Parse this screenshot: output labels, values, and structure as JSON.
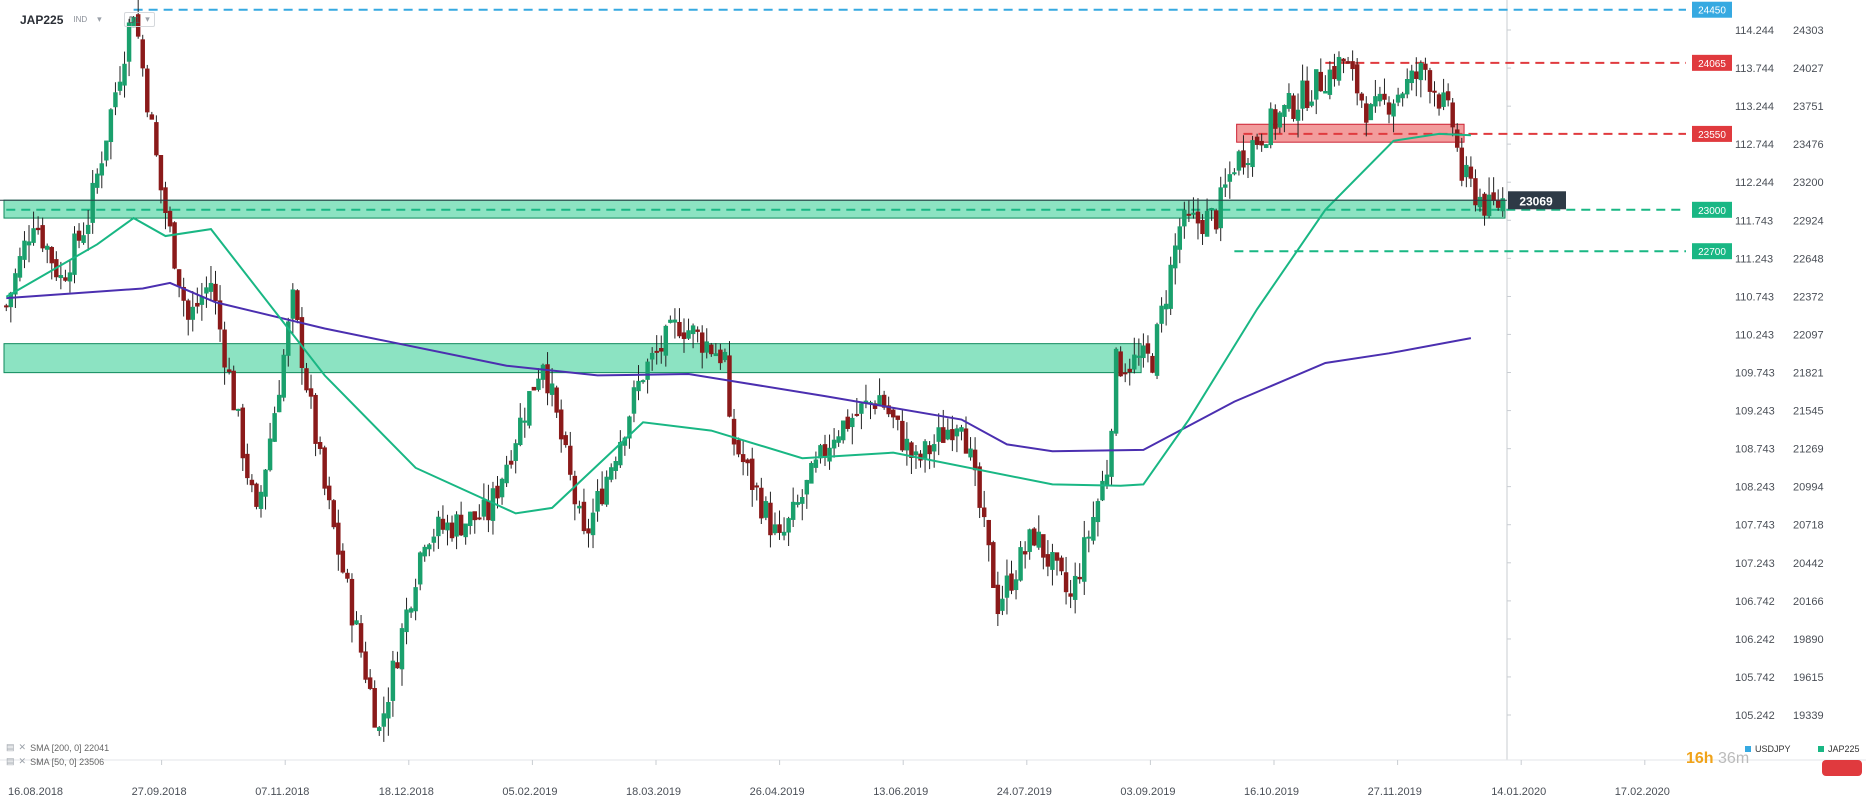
{
  "instrument": {
    "symbol": "JAP225",
    "type": "IND",
    "timeframe": "D1"
  },
  "indicators": [
    {
      "label": "SMA [200, 0] 22041",
      "color": "#4b2fb0"
    },
    {
      "label": "SMA [50, 0] 23506",
      "color": "#19b784"
    }
  ],
  "legend": [
    {
      "label": "USDJPY",
      "color": "#36a9e1"
    },
    {
      "label": "JAP225",
      "color": "#19b784"
    }
  ],
  "timer": {
    "hours": "16h",
    "minutes": "36m"
  },
  "colors": {
    "bull": "#1aa06d",
    "bear": "#8b1a1a",
    "zone_green": "#2ecc8f",
    "zone_red": "#e84a4a",
    "sma50": "#19b784",
    "sma200": "#4b2fb0",
    "usd_line": "#36a9e1",
    "res_line": "#e03a3e",
    "current_price": "#2e3a46"
  },
  "chart_data": {
    "type": "candlestick",
    "x_tick_labels": [
      "16.08.2018",
      "27.09.2018",
      "07.11.2018",
      "18.12.2018",
      "05.02.2019",
      "18.03.2019",
      "26.04.2019",
      "13.06.2019",
      "24.07.2019",
      "03.09.2019",
      "16.10.2019",
      "27.11.2019",
      "14.01.2020",
      "17.02.2020"
    ],
    "y_right_ticks": [
      "24303",
      "24027",
      "23751",
      "23476",
      "23200",
      "22924",
      "22648",
      "22372",
      "22097",
      "21821",
      "21545",
      "21269",
      "20994",
      "20718",
      "20442",
      "20166",
      "19890",
      "19615",
      "19339"
    ],
    "y_left_ticks": [
      "114.244",
      "113.744",
      "113.244",
      "112.744",
      "112.244",
      "111.743",
      "111.243",
      "110.743",
      "110.243",
      "109.743",
      "109.243",
      "108.743",
      "108.243",
      "107.743",
      "107.243",
      "106.742",
      "106.242",
      "105.742",
      "105.242"
    ],
    "y_range": [
      19180,
      24450
    ],
    "levels": [
      {
        "label": "24450",
        "value": 24450,
        "color": "#36a9e1",
        "x_start": 28
      },
      {
        "label": "24065",
        "value": 24065,
        "color": "#e03a3e",
        "x_start": 290
      },
      {
        "label": "23550",
        "value": 23550,
        "color": "#e03a3e",
        "x_start": 272
      },
      {
        "label": "23000",
        "value": 23000,
        "color": "#19b784",
        "x_start": 0
      },
      {
        "label": "22700",
        "value": 22700,
        "color": "#19b784",
        "x_start": 270
      }
    ],
    "current_price": {
      "label": "23069",
      "value": 23069
    },
    "zones": [
      {
        "color": "green",
        "from": 22940,
        "to": 23070,
        "start": 0,
        "end": 329
      },
      {
        "color": "green",
        "from": 21820,
        "to": 22030,
        "start": 0,
        "end": 249
      },
      {
        "color": "red",
        "from": 23490,
        "to": 23620,
        "start": 271,
        "end": 320
      }
    ],
    "series": [
      {
        "name": "SMA [200, 0] 22041",
        "key": "sma200",
        "points": [
          [
            0,
            22360
          ],
          [
            30,
            22430
          ],
          [
            36,
            22470
          ],
          [
            46,
            22330
          ],
          [
            70,
            22140
          ],
          [
            110,
            21870
          ],
          [
            130,
            21800
          ],
          [
            150,
            21810
          ],
          [
            180,
            21650
          ],
          [
            210,
            21480
          ],
          [
            220,
            21300
          ],
          [
            230,
            21250
          ],
          [
            250,
            21260
          ],
          [
            270,
            21610
          ],
          [
            290,
            21890
          ],
          [
            304,
            21960
          ],
          [
            322,
            22070
          ]
        ]
      },
      {
        "name": "SMA [50, 0] 23506",
        "key": "sma50",
        "points": [
          [
            0,
            22370
          ],
          [
            20,
            22750
          ],
          [
            28,
            22940
          ],
          [
            35,
            22810
          ],
          [
            45,
            22860
          ],
          [
            70,
            21800
          ],
          [
            90,
            21130
          ],
          [
            112,
            20800
          ],
          [
            120,
            20840
          ],
          [
            140,
            21460
          ],
          [
            155,
            21400
          ],
          [
            175,
            21200
          ],
          [
            195,
            21240
          ],
          [
            230,
            21010
          ],
          [
            245,
            21000
          ],
          [
            250,
            21010
          ],
          [
            260,
            21480
          ],
          [
            275,
            22280
          ],
          [
            290,
            23000
          ],
          [
            305,
            23500
          ],
          [
            315,
            23550
          ],
          [
            322,
            23540
          ]
        ]
      }
    ],
    "anchors": [
      [
        0,
        22300
      ],
      [
        6,
        22950
      ],
      [
        12,
        22500
      ],
      [
        18,
        22940
      ],
      [
        28,
        24470
      ],
      [
        34,
        23150
      ],
      [
        40,
        22200
      ],
      [
        45,
        22480
      ],
      [
        55,
        20760
      ],
      [
        63,
        22330
      ],
      [
        70,
        20970
      ],
      [
        82,
        19220
      ],
      [
        92,
        20650
      ],
      [
        106,
        20800
      ],
      [
        118,
        21930
      ],
      [
        127,
        20600
      ],
      [
        140,
        21820
      ],
      [
        148,
        22180
      ],
      [
        158,
        21930
      ],
      [
        158,
        21470
      ],
      [
        170,
        20580
      ],
      [
        182,
        21390
      ],
      [
        192,
        21650
      ],
      [
        200,
        21160
      ],
      [
        210,
        21520
      ],
      [
        218,
        20150
      ],
      [
        226,
        20650
      ],
      [
        234,
        20170
      ],
      [
        242,
        21130
      ],
      [
        244,
        21880
      ],
      [
        252,
        21920
      ],
      [
        258,
        22880
      ],
      [
        266,
        22950
      ],
      [
        270,
        23340
      ],
      [
        278,
        23620
      ],
      [
        294,
        24080
      ],
      [
        300,
        23680
      ],
      [
        312,
        24020
      ],
      [
        318,
        23620
      ],
      [
        320,
        23250
      ],
      [
        326,
        23000
      ],
      [
        329,
        23069
      ]
    ]
  }
}
